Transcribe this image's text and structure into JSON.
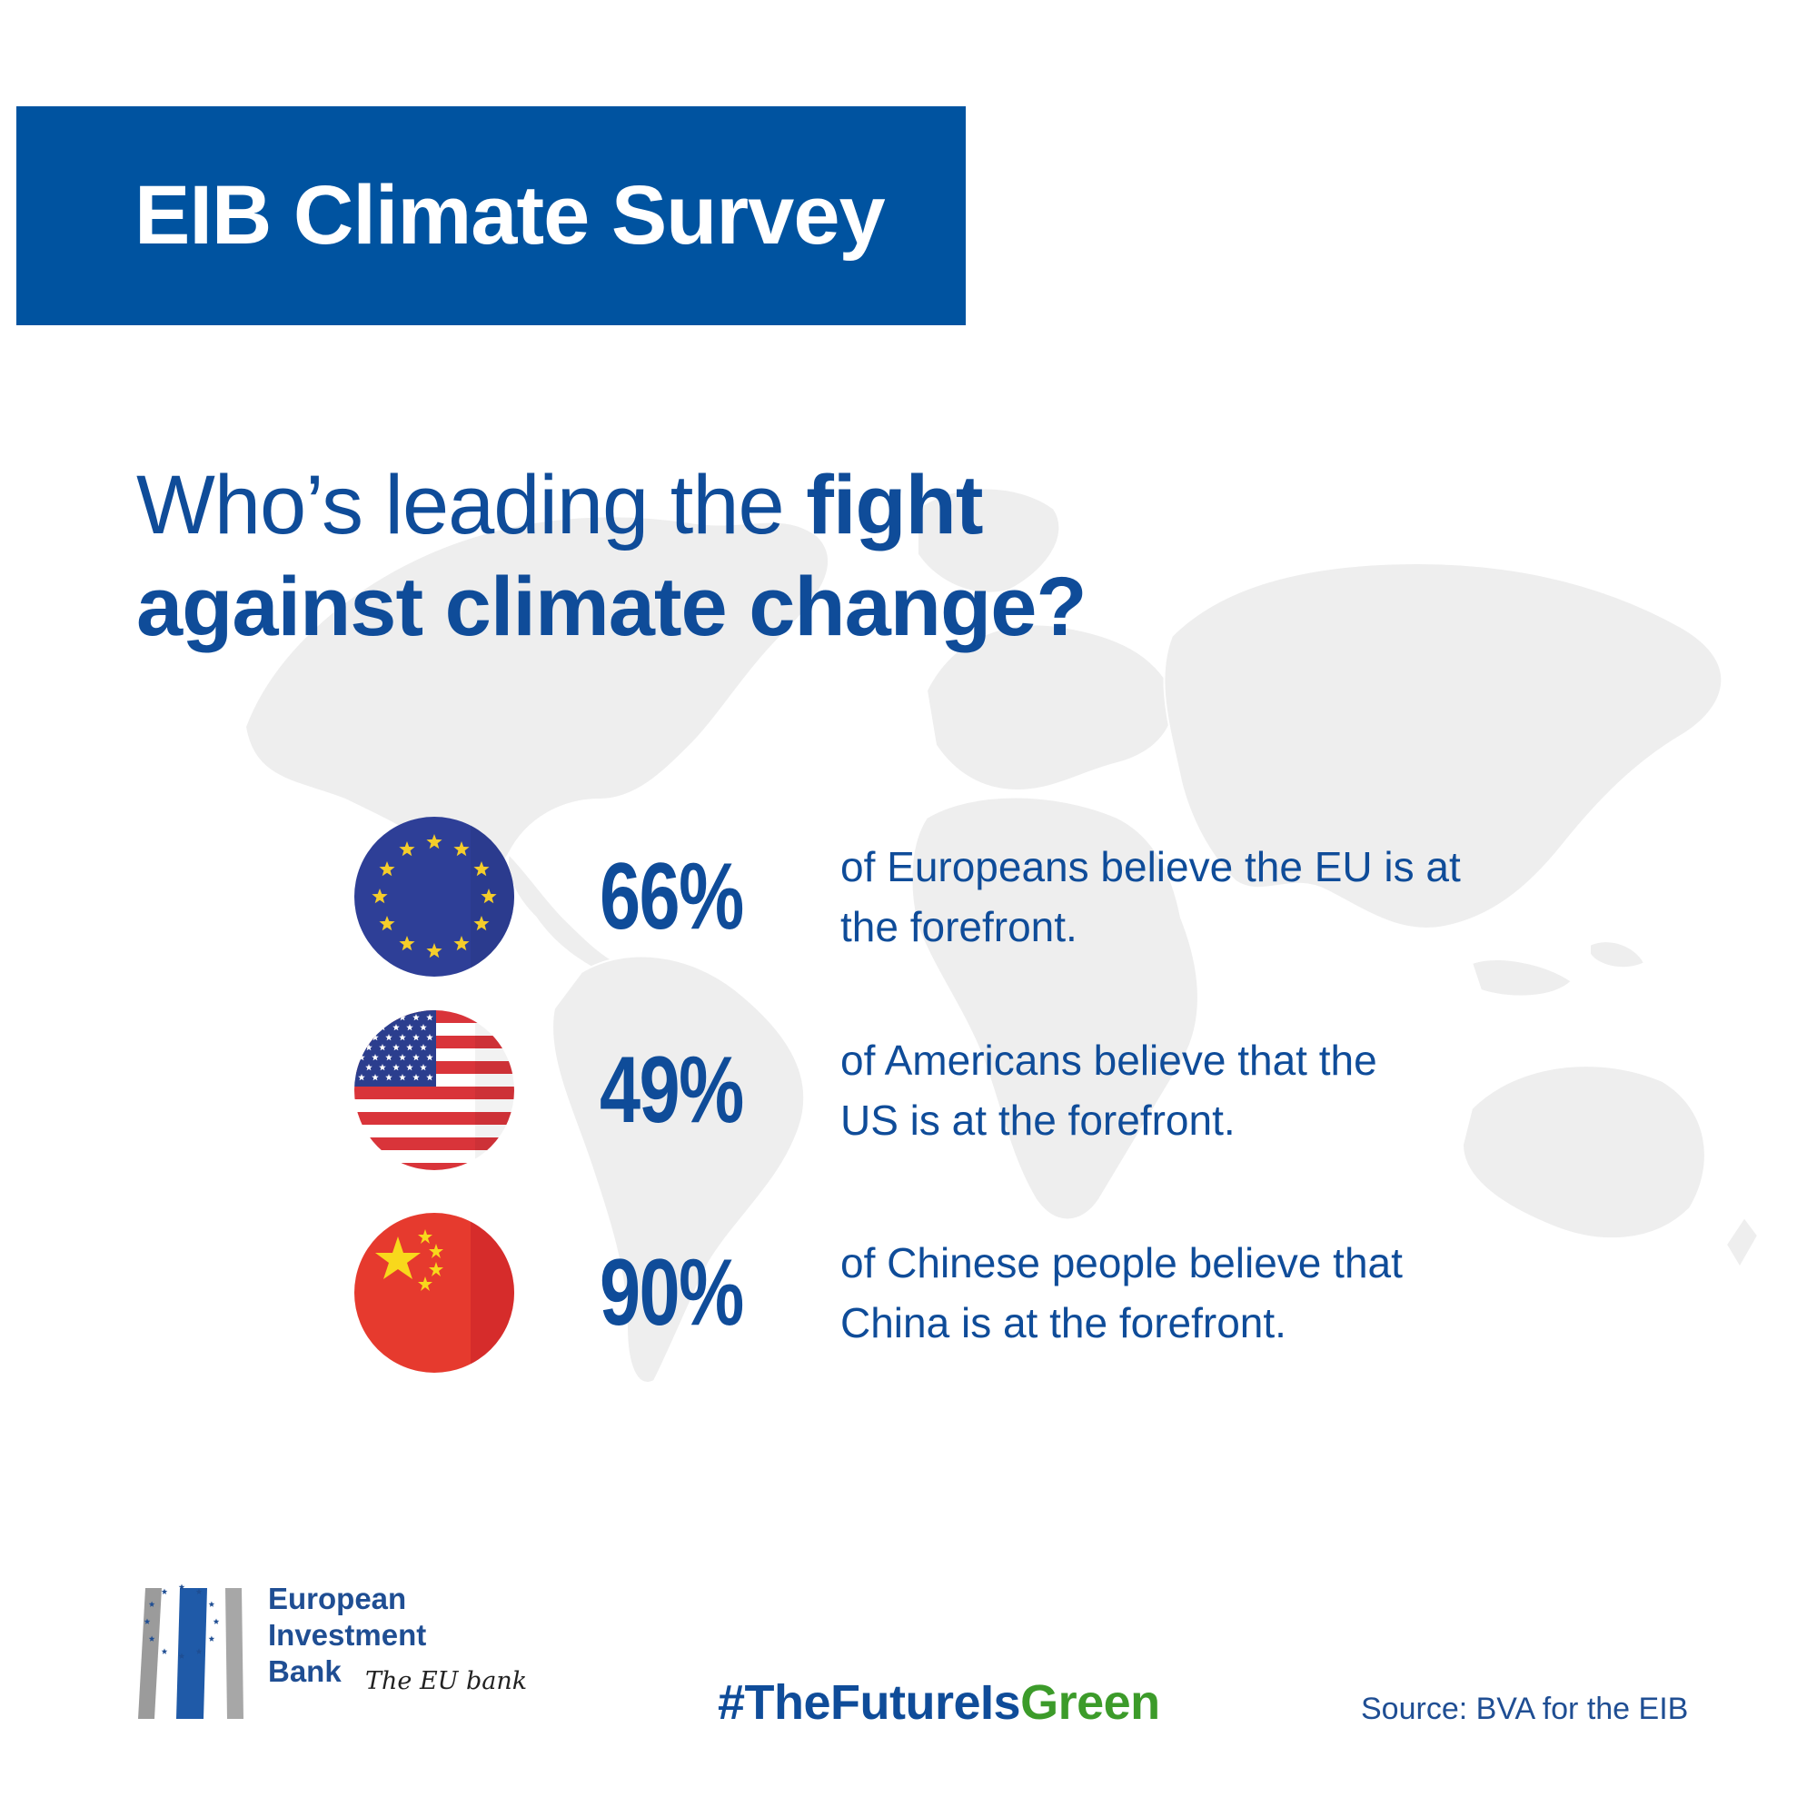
{
  "header": {
    "title": "EIB Climate Survey"
  },
  "headline": {
    "line1_pre": "Who’s leading the ",
    "line1_bold": "fight",
    "line2": "against climate change?"
  },
  "stats": [
    {
      "flag": "eu-flag-icon",
      "value": "66%",
      "text_line1": "of Europeans believe the EU is at",
      "text_line2": "the forefront."
    },
    {
      "flag": "us-flag-icon",
      "value": "49%",
      "text_line1": "of Americans  believe that the",
      "text_line2": "US is at the forefront."
    },
    {
      "flag": "china-flag-icon",
      "value": "90%",
      "text_line1": "of Chinese people believe that",
      "text_line2": "China is at the forefront."
    }
  ],
  "footer": {
    "logo": {
      "line1": "European",
      "line2": "Investment",
      "line3": "Bank",
      "tagline": "The EU bank"
    },
    "hashtag_main": "#TheFutureIs",
    "hashtag_green": "Green",
    "source": "Source: BVA for the EIB"
  },
  "colors": {
    "brand_blue": "#0053a0",
    "text_blue": "#0f4c99",
    "green": "#3c9b2a",
    "map_gray": "#eeeeee"
  }
}
